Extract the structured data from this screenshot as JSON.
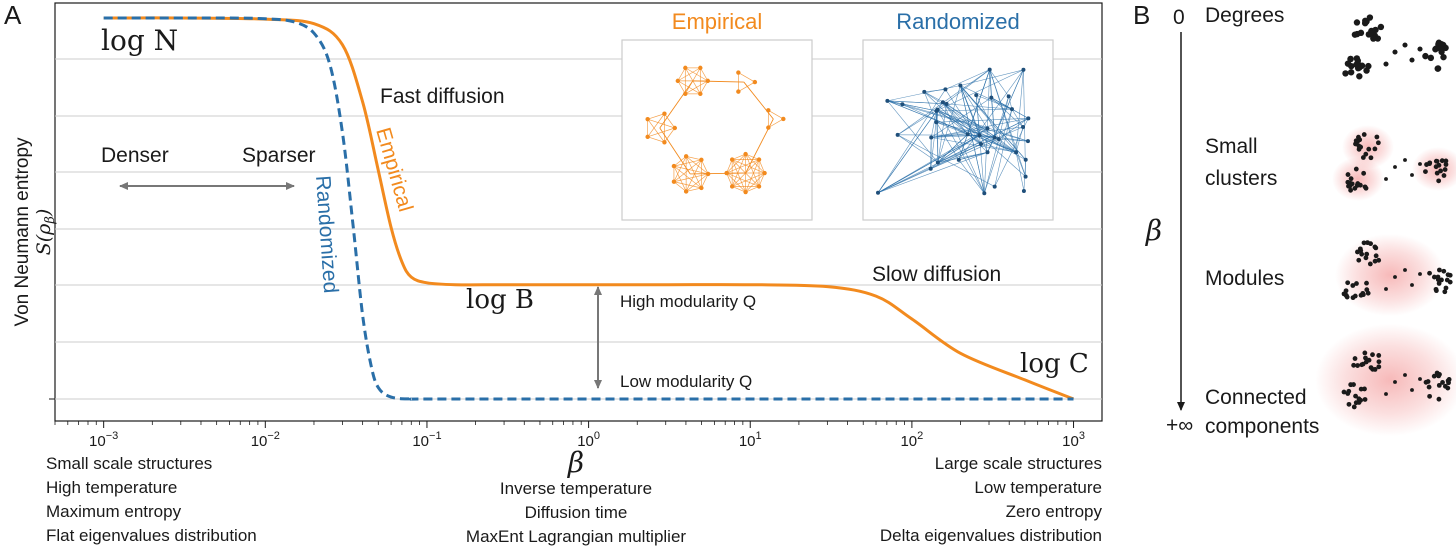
{
  "panel_a": {
    "label": "A",
    "ylabel_line1": "Von Neumann entropy",
    "ylabel_line2": "S(ρ",
    "ylabel_sub": "β",
    "ylabel_close": ")",
    "xlabel": "β",
    "left_notes": [
      "Small scale structures",
      "High temperature",
      "Maximum entropy",
      "Flat eigenvalues distribution"
    ],
    "center_notes": [
      "Inverse temperature",
      "Diffusion time",
      "MaxEnt Lagrangian multiplier"
    ],
    "right_notes": [
      "Large scale structures",
      "Low temperature",
      "Zero entropy",
      "Delta eigenvalues distribution"
    ],
    "annotations": {
      "log_n": "log N",
      "log_b": "log B",
      "log_c": "log C",
      "fast_diffusion": "Fast diffusion",
      "slow_diffusion": "Slow diffusion",
      "denser": "Denser",
      "sparser": "Sparser",
      "high_modularity": "High modularity Q",
      "low_modularity": "Low modularity Q",
      "empirical_curve": "Empirical",
      "randomized_curve": "Randomized"
    },
    "insets": {
      "empirical_title": "Empirical",
      "randomized_title": "Randomized"
    },
    "colors": {
      "empirical": "#f28a1e",
      "randomized": "#2a6fa8",
      "arrow": "#777777",
      "grid": "#cccccc"
    }
  },
  "panel_b": {
    "label": "B",
    "beta_top": "0",
    "beta_label": "β",
    "beta_bottom": "+∞",
    "stages": [
      {
        "lines": [
          "Degrees"
        ]
      },
      {
        "lines": [
          "Small",
          "clusters"
        ]
      },
      {
        "lines": [
          "Modules"
        ]
      },
      {
        "lines": [
          "Connected",
          "components"
        ]
      }
    ],
    "glow_color": "#f08080"
  },
  "chart_data": {
    "type": "line",
    "xscale": "log",
    "xlim": [
      0.0005,
      1500
    ],
    "x_ticks": [
      0.001,
      0.01,
      0.1,
      1,
      10,
      100,
      1000
    ],
    "x_tick_labels": [
      {
        "base": "10",
        "exp": "−3"
      },
      {
        "base": "10",
        "exp": "−2"
      },
      {
        "base": "10",
        "exp": "−1"
      },
      {
        "base": "10",
        "exp": "0"
      },
      {
        "base": "10",
        "exp": "1"
      },
      {
        "base": "10",
        "exp": "2"
      },
      {
        "base": "10",
        "exp": "3"
      }
    ],
    "ylim": [
      0,
      1.0
    ],
    "grid": true,
    "series": [
      {
        "name": "Empirical",
        "style": "solid",
        "x": [
          0.001,
          0.003,
          0.01,
          0.02,
          0.03,
          0.04,
          0.05,
          0.06,
          0.07,
          0.08,
          0.1,
          0.15,
          0.3,
          1,
          3,
          10,
          30,
          60,
          100,
          200,
          500,
          1000
        ],
        "y": [
          1.0,
          1.0,
          0.997,
          0.985,
          0.93,
          0.78,
          0.6,
          0.45,
          0.36,
          0.32,
          0.305,
          0.3,
          0.3,
          0.3,
          0.3,
          0.3,
          0.295,
          0.27,
          0.21,
          0.12,
          0.05,
          0.0
        ]
      },
      {
        "name": "Randomized",
        "style": "dashed",
        "x": [
          0.001,
          0.005,
          0.01,
          0.015,
          0.02,
          0.025,
          0.03,
          0.035,
          0.04,
          0.045,
          0.05,
          0.06,
          0.08,
          0.1,
          1,
          10,
          100,
          1000
        ],
        "y": [
          1.0,
          1.0,
          0.998,
          0.99,
          0.96,
          0.88,
          0.7,
          0.45,
          0.22,
          0.09,
          0.03,
          0.005,
          0.0,
          0.0,
          0.0,
          0.0,
          0.0,
          0.0
        ]
      }
    ]
  }
}
